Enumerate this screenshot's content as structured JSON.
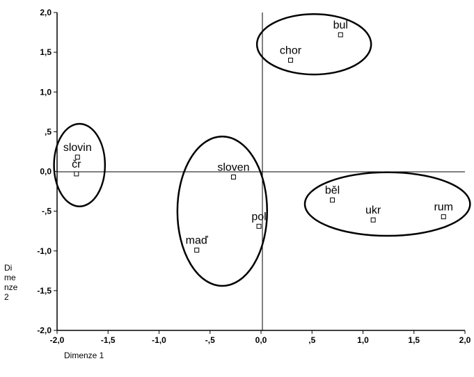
{
  "chart_data": {
    "type": "scatter",
    "xlabel": "Dimenze 1",
    "ylabel": "Di\nme\nnze\n2",
    "xlim": [
      -2.0,
      2.0
    ],
    "ylim": [
      -2.0,
      2.0
    ],
    "x_ticks": [
      "-2,0",
      "-1,5",
      "-1,0",
      "-,5",
      "0,0",
      ",5",
      "1,0",
      "1,5",
      "2,0"
    ],
    "y_ticks": [
      "2,0",
      "1,5",
      "1,0",
      ",5",
      "0,0",
      "-,5",
      "-1,0",
      "-1,5",
      "-2,0"
    ],
    "grid": false,
    "points": [
      {
        "label": "bul",
        "x": 0.78,
        "y": 1.72
      },
      {
        "label": "chor",
        "x": 0.29,
        "y": 1.4
      },
      {
        "label": "slovin",
        "x": -1.8,
        "y": 0.18
      },
      {
        "label": "čr",
        "x": -1.81,
        "y": -0.03
      },
      {
        "label": "sloven",
        "x": -0.27,
        "y": -0.07
      },
      {
        "label": "běl",
        "x": 0.7,
        "y": -0.36
      },
      {
        "label": "ukr",
        "x": 1.1,
        "y": -0.61
      },
      {
        "label": "rum",
        "x": 1.79,
        "y": -0.57
      },
      {
        "label": "pol",
        "x": -0.02,
        "y": -0.69
      },
      {
        "label": "maď",
        "x": -0.63,
        "y": -0.99
      }
    ],
    "clusters": [
      {
        "members": [
          "bul",
          "chor"
        ],
        "cx": 0.52,
        "cy": 1.6,
        "rx": 0.56,
        "ry": 0.38
      },
      {
        "members": [
          "slovin",
          "čr"
        ],
        "cx": -1.78,
        "cy": 0.08,
        "rx": 0.25,
        "ry": 0.52
      },
      {
        "members": [
          "sloven",
          "pol",
          "maď"
        ],
        "cx": -0.38,
        "cy": -0.5,
        "rx": 0.44,
        "ry": 0.94
      },
      {
        "members": [
          "běl",
          "ukr",
          "rum"
        ],
        "cx": 1.24,
        "cy": -0.41,
        "rx": 0.81,
        "ry": 0.4
      }
    ]
  }
}
